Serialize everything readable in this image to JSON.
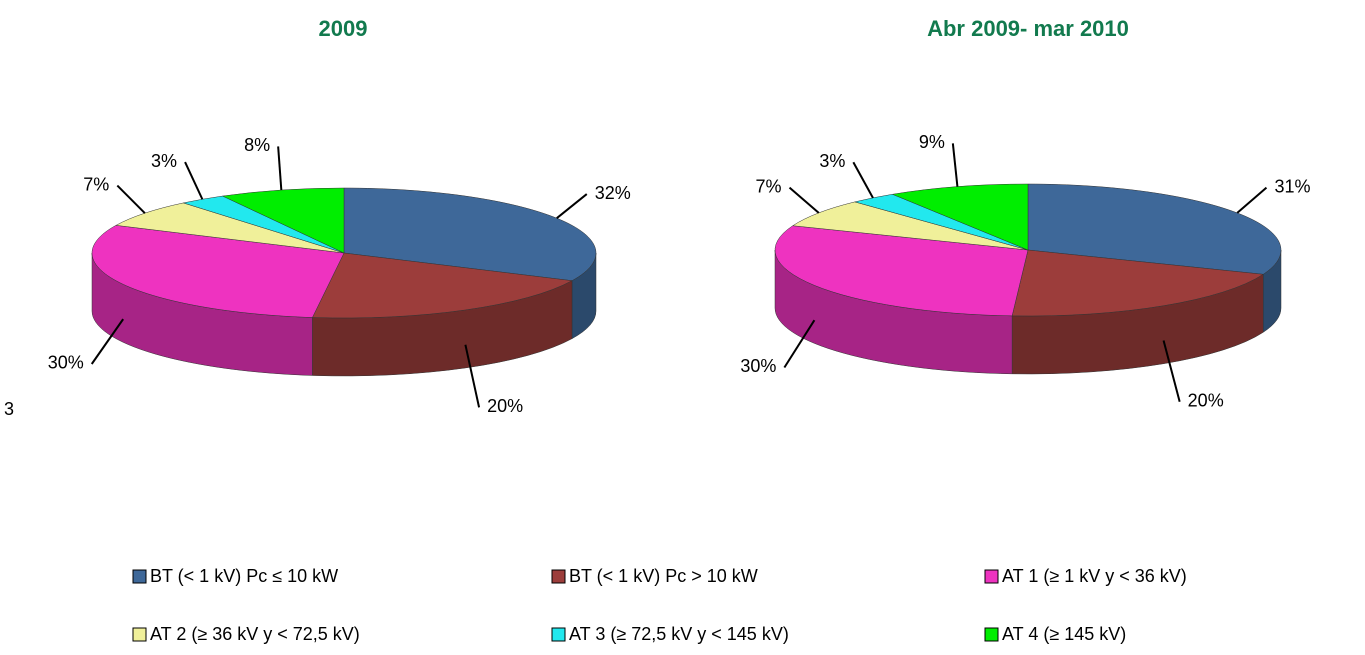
{
  "legend": {
    "categories": [
      "BT (< 1 kV) Pc ≤ 10 kW",
      "BT (< 1 kV) Pc > 10 kW",
      "AT 1 (≥  1 kV y  < 36 kV)",
      "AT 2 (≥  36 kV y < 72,5 kV)",
      "AT 3 (≥ 72,5 kV y < 145 kV)",
      "AT 4 (≥ 145 kV)"
    ],
    "colors": [
      "#3e6899",
      "#9c3d3b",
      "#ee33c0",
      "#f0f09a",
      "#22e8ee",
      "#00ee00"
    ]
  },
  "stray_text": "3",
  "chart_data": [
    {
      "type": "pie",
      "title": "2009",
      "values": [
        32,
        20,
        30,
        7,
        3,
        8
      ],
      "value_labels": [
        "32%",
        "20%",
        "30%",
        "7%",
        "3%",
        "8%"
      ]
    },
    {
      "type": "pie",
      "title": "Abr 2009- mar 2010",
      "values": [
        31,
        20,
        30,
        7,
        3,
        9
      ],
      "value_labels": [
        "31%",
        "20%",
        "30%",
        "7%",
        "3%",
        "9%"
      ]
    }
  ]
}
